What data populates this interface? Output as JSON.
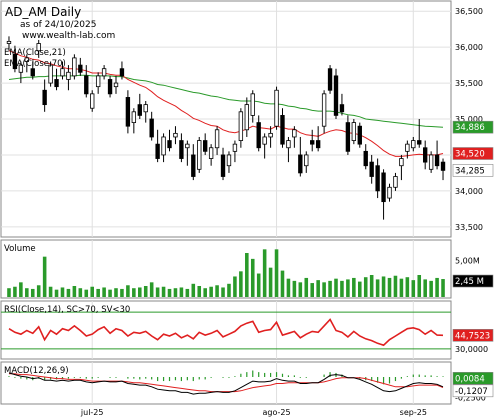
{
  "chart_data": {
    "type": "candlestick-with-indicators",
    "title": "AD_AM Daily",
    "subtitle": "as of 24/10/2025",
    "watermark": "www.wealth-lab.com",
    "x_tick_labels": [
      "jul-25",
      "ago-25",
      "sep-25"
    ],
    "price": {
      "ylim": [
        33400,
        36600
      ],
      "y_ticks": [
        {
          "value": 36500,
          "label": "36,500"
        },
        {
          "value": 36000,
          "label": "36,000"
        },
        {
          "value": 35500,
          "label": "35,500"
        },
        {
          "value": 35000,
          "label": "35,000"
        },
        {
          "value": 34500,
          "label": "34,500"
        },
        {
          "value": 34000,
          "label": "34,000"
        },
        {
          "value": 33500,
          "label": "33,500"
        }
      ],
      "legend": [
        "EMA(Close,21)",
        "EMA(Close,70)"
      ],
      "series_colors": {
        "ema21": "#e02020",
        "ema70": "#2a9a2a",
        "bull": "#ffffff",
        "bear": "#000000"
      },
      "last_values": [
        {
          "name": "ema70",
          "label": "34,886",
          "value": 34886,
          "bg": "#2a9a2a",
          "fg": "#ffffff"
        },
        {
          "name": "ema21",
          "label": "34,520",
          "value": 34520,
          "bg": "#e02020",
          "fg": "#ffffff"
        },
        {
          "name": "close",
          "label": "34,285",
          "value": 34285,
          "bg": "#ffffff",
          "fg": "#000000"
        }
      ],
      "candles": [
        [
          36050,
          36150,
          35950,
          36080
        ],
        [
          35900,
          36020,
          35650,
          35700
        ],
        [
          35650,
          35800,
          35500,
          35750
        ],
        [
          35800,
          35900,
          35650,
          35850
        ],
        [
          35700,
          35800,
          35550,
          35600
        ],
        [
          35950,
          36100,
          35850,
          36050
        ],
        [
          35400,
          35550,
          35100,
          35200
        ],
        [
          35500,
          35800,
          35450,
          35750
        ],
        [
          35550,
          35700,
          35400,
          35450
        ],
        [
          35600,
          35800,
          35550,
          35700
        ],
        [
          35550,
          35750,
          35400,
          35650
        ],
        [
          35600,
          35900,
          35550,
          35850
        ],
        [
          35750,
          35850,
          35600,
          35650
        ],
        [
          35600,
          35750,
          35300,
          35350
        ],
        [
          35150,
          35400,
          35100,
          35350
        ],
        [
          35450,
          35650,
          35350,
          35600
        ],
        [
          35600,
          35750,
          35550,
          35700
        ],
        [
          35550,
          35600,
          35300,
          35350
        ],
        [
          35450,
          35600,
          35350,
          35500
        ],
        [
          35700,
          35800,
          35550,
          35600
        ],
        [
          35300,
          35400,
          34800,
          34900
        ],
        [
          34950,
          35150,
          34800,
          35100
        ],
        [
          35200,
          35350,
          35000,
          35050
        ],
        [
          35100,
          35250,
          34950,
          35200
        ],
        [
          35000,
          35100,
          34700,
          34750
        ],
        [
          34650,
          34850,
          34400,
          34450
        ],
        [
          34500,
          34800,
          34400,
          34750
        ],
        [
          34700,
          34850,
          34550,
          34600
        ],
        [
          34750,
          34900,
          34650,
          34800
        ],
        [
          34700,
          34800,
          34400,
          34450
        ],
        [
          34600,
          34700,
          34350,
          34650
        ],
        [
          34500,
          34650,
          34150,
          34200
        ],
        [
          34300,
          34750,
          34250,
          34700
        ],
        [
          34700,
          34800,
          34500,
          34550
        ],
        [
          34450,
          34650,
          34350,
          34600
        ],
        [
          34600,
          34900,
          34500,
          34850
        ],
        [
          34500,
          34600,
          34150,
          34200
        ],
        [
          34350,
          34550,
          34250,
          34500
        ],
        [
          34550,
          34700,
          34400,
          34650
        ],
        [
          34700,
          35150,
          34600,
          35100
        ],
        [
          34850,
          35300,
          34750,
          35200
        ],
        [
          35050,
          35400,
          34950,
          35350
        ],
        [
          34950,
          35050,
          34550,
          34600
        ],
        [
          34650,
          34800,
          34450,
          34750
        ],
        [
          34750,
          34900,
          34600,
          34800
        ],
        [
          34900,
          35450,
          34850,
          35400
        ],
        [
          35050,
          35150,
          34600,
          34650
        ],
        [
          34600,
          34750,
          34400,
          34700
        ],
        [
          34750,
          34900,
          34600,
          34850
        ],
        [
          34500,
          34750,
          34200,
          34250
        ],
        [
          34350,
          34550,
          34250,
          34500
        ],
        [
          34700,
          34850,
          34550,
          34650
        ],
        [
          34700,
          34900,
          34550,
          34600
        ],
        [
          34900,
          35400,
          34800,
          35350
        ],
        [
          35700,
          35750,
          35350,
          35400
        ],
        [
          35600,
          35700,
          35000,
          35050
        ],
        [
          35200,
          35350,
          35050,
          35100
        ],
        [
          34950,
          35050,
          34500,
          34550
        ],
        [
          34700,
          35000,
          34650,
          34950
        ],
        [
          34900,
          34950,
          34600,
          34650
        ],
        [
          34550,
          34650,
          34300,
          34350
        ],
        [
          34400,
          34500,
          34100,
          34200
        ],
        [
          34350,
          34450,
          33900,
          34000
        ],
        [
          34250,
          34300,
          33600,
          33850
        ],
        [
          33900,
          34100,
          33850,
          34050
        ],
        [
          34050,
          34250,
          34000,
          34200
        ],
        [
          34350,
          34500,
          34150,
          34450
        ],
        [
          34550,
          34700,
          34450,
          34650
        ],
        [
          34600,
          34750,
          34550,
          34700
        ],
        [
          34700,
          35000,
          34600,
          34650
        ],
        [
          34600,
          34700,
          34300,
          34400
        ],
        [
          34300,
          34550,
          34250,
          34500
        ],
        [
          34500,
          34700,
          34300,
          34350
        ],
        [
          34400,
          34450,
          34150,
          34285
        ]
      ],
      "ema21": [
        35950,
        35920,
        35880,
        35860,
        35830,
        35820,
        35780,
        35770,
        35740,
        35720,
        35700,
        35700,
        35690,
        35670,
        35640,
        35640,
        35640,
        35620,
        35610,
        35610,
        35550,
        35510,
        35470,
        35440,
        35380,
        35310,
        35260,
        35220,
        35180,
        35120,
        35070,
        35010,
        34980,
        34940,
        34910,
        34900,
        34850,
        34820,
        34810,
        34830,
        34860,
        34900,
        34880,
        34870,
        34860,
        34900,
        34880,
        34860,
        34860,
        34810,
        34780,
        34770,
        34760,
        34800,
        34830,
        34850,
        34840,
        34810,
        34800,
        34780,
        34740,
        34690,
        34630,
        34560,
        34510,
        34480,
        34480,
        34490,
        34500,
        34510,
        34500,
        34500,
        34500,
        34520
      ],
      "ema70": [
        35550,
        35560,
        35570,
        35580,
        35580,
        35590,
        35590,
        35600,
        35600,
        35600,
        35600,
        35600,
        35610,
        35610,
        35600,
        35600,
        35600,
        35600,
        35590,
        35590,
        35570,
        35550,
        35540,
        35530,
        35510,
        35480,
        35470,
        35450,
        35430,
        35410,
        35390,
        35370,
        35360,
        35340,
        35320,
        35310,
        35290,
        35270,
        35260,
        35250,
        35250,
        35250,
        35240,
        35220,
        35210,
        35210,
        35200,
        35180,
        35170,
        35150,
        35140,
        35120,
        35110,
        35110,
        35110,
        35100,
        35080,
        35060,
        35050,
        35030,
        35000,
        34990,
        34980,
        34970,
        34960,
        34950,
        34940,
        34930,
        34920,
        34910,
        34900,
        34895,
        34890,
        34886
      ]
    },
    "volume": {
      "label": "Volume",
      "ylim": [
        0,
        7500000
      ],
      "y_ticks": [
        {
          "value": 5000000,
          "label": "5,00M"
        }
      ],
      "last_label": "2,45 M",
      "color": "#2a9a2a",
      "values": [
        1.2,
        1.4,
        2.0,
        1.2,
        1.1,
        1.6,
        5.5,
        1.4,
        1.0,
        1.3,
        1.1,
        1.5,
        1.2,
        1.0,
        1.4,
        1.1,
        1.3,
        1.0,
        1.2,
        1.1,
        1.6,
        1.2,
        1.3,
        1.5,
        2.0,
        1.3,
        1.4,
        1.1,
        1.2,
        1.3,
        1.1,
        1.8,
        1.5,
        1.2,
        1.4,
        1.6,
        1.3,
        1.8,
        2.8,
        3.5,
        6.0,
        5.2,
        3.2,
        6.5,
        4.0,
        6.5,
        3.6,
        2.5,
        2.2,
        2.0,
        2.6,
        1.9,
        2.3,
        2.0,
        2.2,
        2.5,
        2.2,
        2.4,
        2.6,
        2.1,
        2.7,
        3.0,
        2.4,
        2.8,
        2.6,
        2.9,
        2.5,
        2.7,
        2.3,
        3.0,
        2.4,
        2.2,
        2.6,
        2.45
      ]
    },
    "rsi": {
      "label": "RSI(Close,14), SC>70, SV<30",
      "ylim": [
        20,
        80
      ],
      "levels": [
        70,
        30
      ],
      "level_colors": {
        "70": "#2a9a2a",
        "30": "#2a9a2a"
      },
      "y_ticks": [
        {
          "value": 30,
          "label": "30,0000"
        }
      ],
      "last_label": "44,7523",
      "color": "#e02020",
      "values": [
        52,
        48,
        46,
        50,
        47,
        54,
        40,
        50,
        46,
        52,
        50,
        55,
        50,
        44,
        46,
        51,
        54,
        47,
        52,
        50,
        44,
        48,
        47,
        49,
        44,
        40,
        46,
        44,
        47,
        42,
        45,
        41,
        48,
        45,
        47,
        50,
        43,
        46,
        49,
        55,
        58,
        60,
        48,
        50,
        51,
        59,
        45,
        47,
        49,
        42,
        46,
        49,
        48,
        55,
        62,
        50,
        48,
        43,
        49,
        44,
        41,
        39,
        36,
        34,
        40,
        44,
        48,
        52,
        53,
        51,
        46,
        50,
        45,
        44.7523
      ]
    },
    "macd": {
      "label": "MACD(12,26,9)",
      "ylim": [
        -0.32,
        0.16
      ],
      "y_ticks": [
        {
          "value": -0.25,
          "label": "-0,2500"
        }
      ],
      "last_values": [
        {
          "label": "0,0084",
          "value": 0.0084,
          "bg": "#2a9a2a",
          "fg": "#ffffff"
        },
        {
          "label": "-0,1207",
          "value": -0.1207,
          "bg": "#ffffff",
          "fg": "#000000"
        }
      ],
      "line_color": "#000000",
      "signal_color": "#e02020",
      "hist_color": "#2a9a2a",
      "macd": [
        0.05,
        0.03,
        0.01,
        0.0,
        -0.02,
        -0.01,
        -0.04,
        -0.04,
        -0.05,
        -0.04,
        -0.05,
        -0.04,
        -0.04,
        -0.06,
        -0.07,
        -0.06,
        -0.05,
        -0.06,
        -0.06,
        -0.05,
        -0.08,
        -0.09,
        -0.1,
        -0.1,
        -0.12,
        -0.15,
        -0.16,
        -0.17,
        -0.17,
        -0.19,
        -0.19,
        -0.21,
        -0.2,
        -0.2,
        -0.19,
        -0.18,
        -0.19,
        -0.19,
        -0.17,
        -0.13,
        -0.09,
        -0.05,
        -0.06,
        -0.06,
        -0.05,
        -0.02,
        -0.04,
        -0.05,
        -0.05,
        -0.08,
        -0.08,
        -0.07,
        -0.07,
        -0.03,
        0.02,
        0.03,
        0.02,
        -0.01,
        -0.01,
        -0.03,
        -0.06,
        -0.09,
        -0.13,
        -0.17,
        -0.18,
        -0.17,
        -0.14,
        -0.11,
        -0.08,
        -0.07,
        -0.08,
        -0.08,
        -0.09,
        -0.1207
      ],
      "signal": [
        0.04,
        0.04,
        0.03,
        0.03,
        0.02,
        0.01,
        0.0,
        -0.01,
        -0.02,
        -0.02,
        -0.03,
        -0.03,
        -0.03,
        -0.04,
        -0.05,
        -0.05,
        -0.05,
        -0.05,
        -0.05,
        -0.05,
        -0.06,
        -0.07,
        -0.07,
        -0.08,
        -0.09,
        -0.1,
        -0.11,
        -0.12,
        -0.13,
        -0.14,
        -0.15,
        -0.16,
        -0.17,
        -0.17,
        -0.18,
        -0.18,
        -0.18,
        -0.18,
        -0.18,
        -0.17,
        -0.15,
        -0.13,
        -0.12,
        -0.11,
        -0.1,
        -0.08,
        -0.08,
        -0.07,
        -0.07,
        -0.07,
        -0.07,
        -0.07,
        -0.07,
        -0.06,
        -0.04,
        -0.02,
        -0.01,
        -0.01,
        -0.01,
        -0.01,
        -0.02,
        -0.04,
        -0.06,
        -0.08,
        -0.1,
        -0.12,
        -0.12,
        -0.12,
        -0.11,
        -0.1,
        -0.1,
        -0.1,
        -0.1,
        -0.1291
      ]
    }
  }
}
